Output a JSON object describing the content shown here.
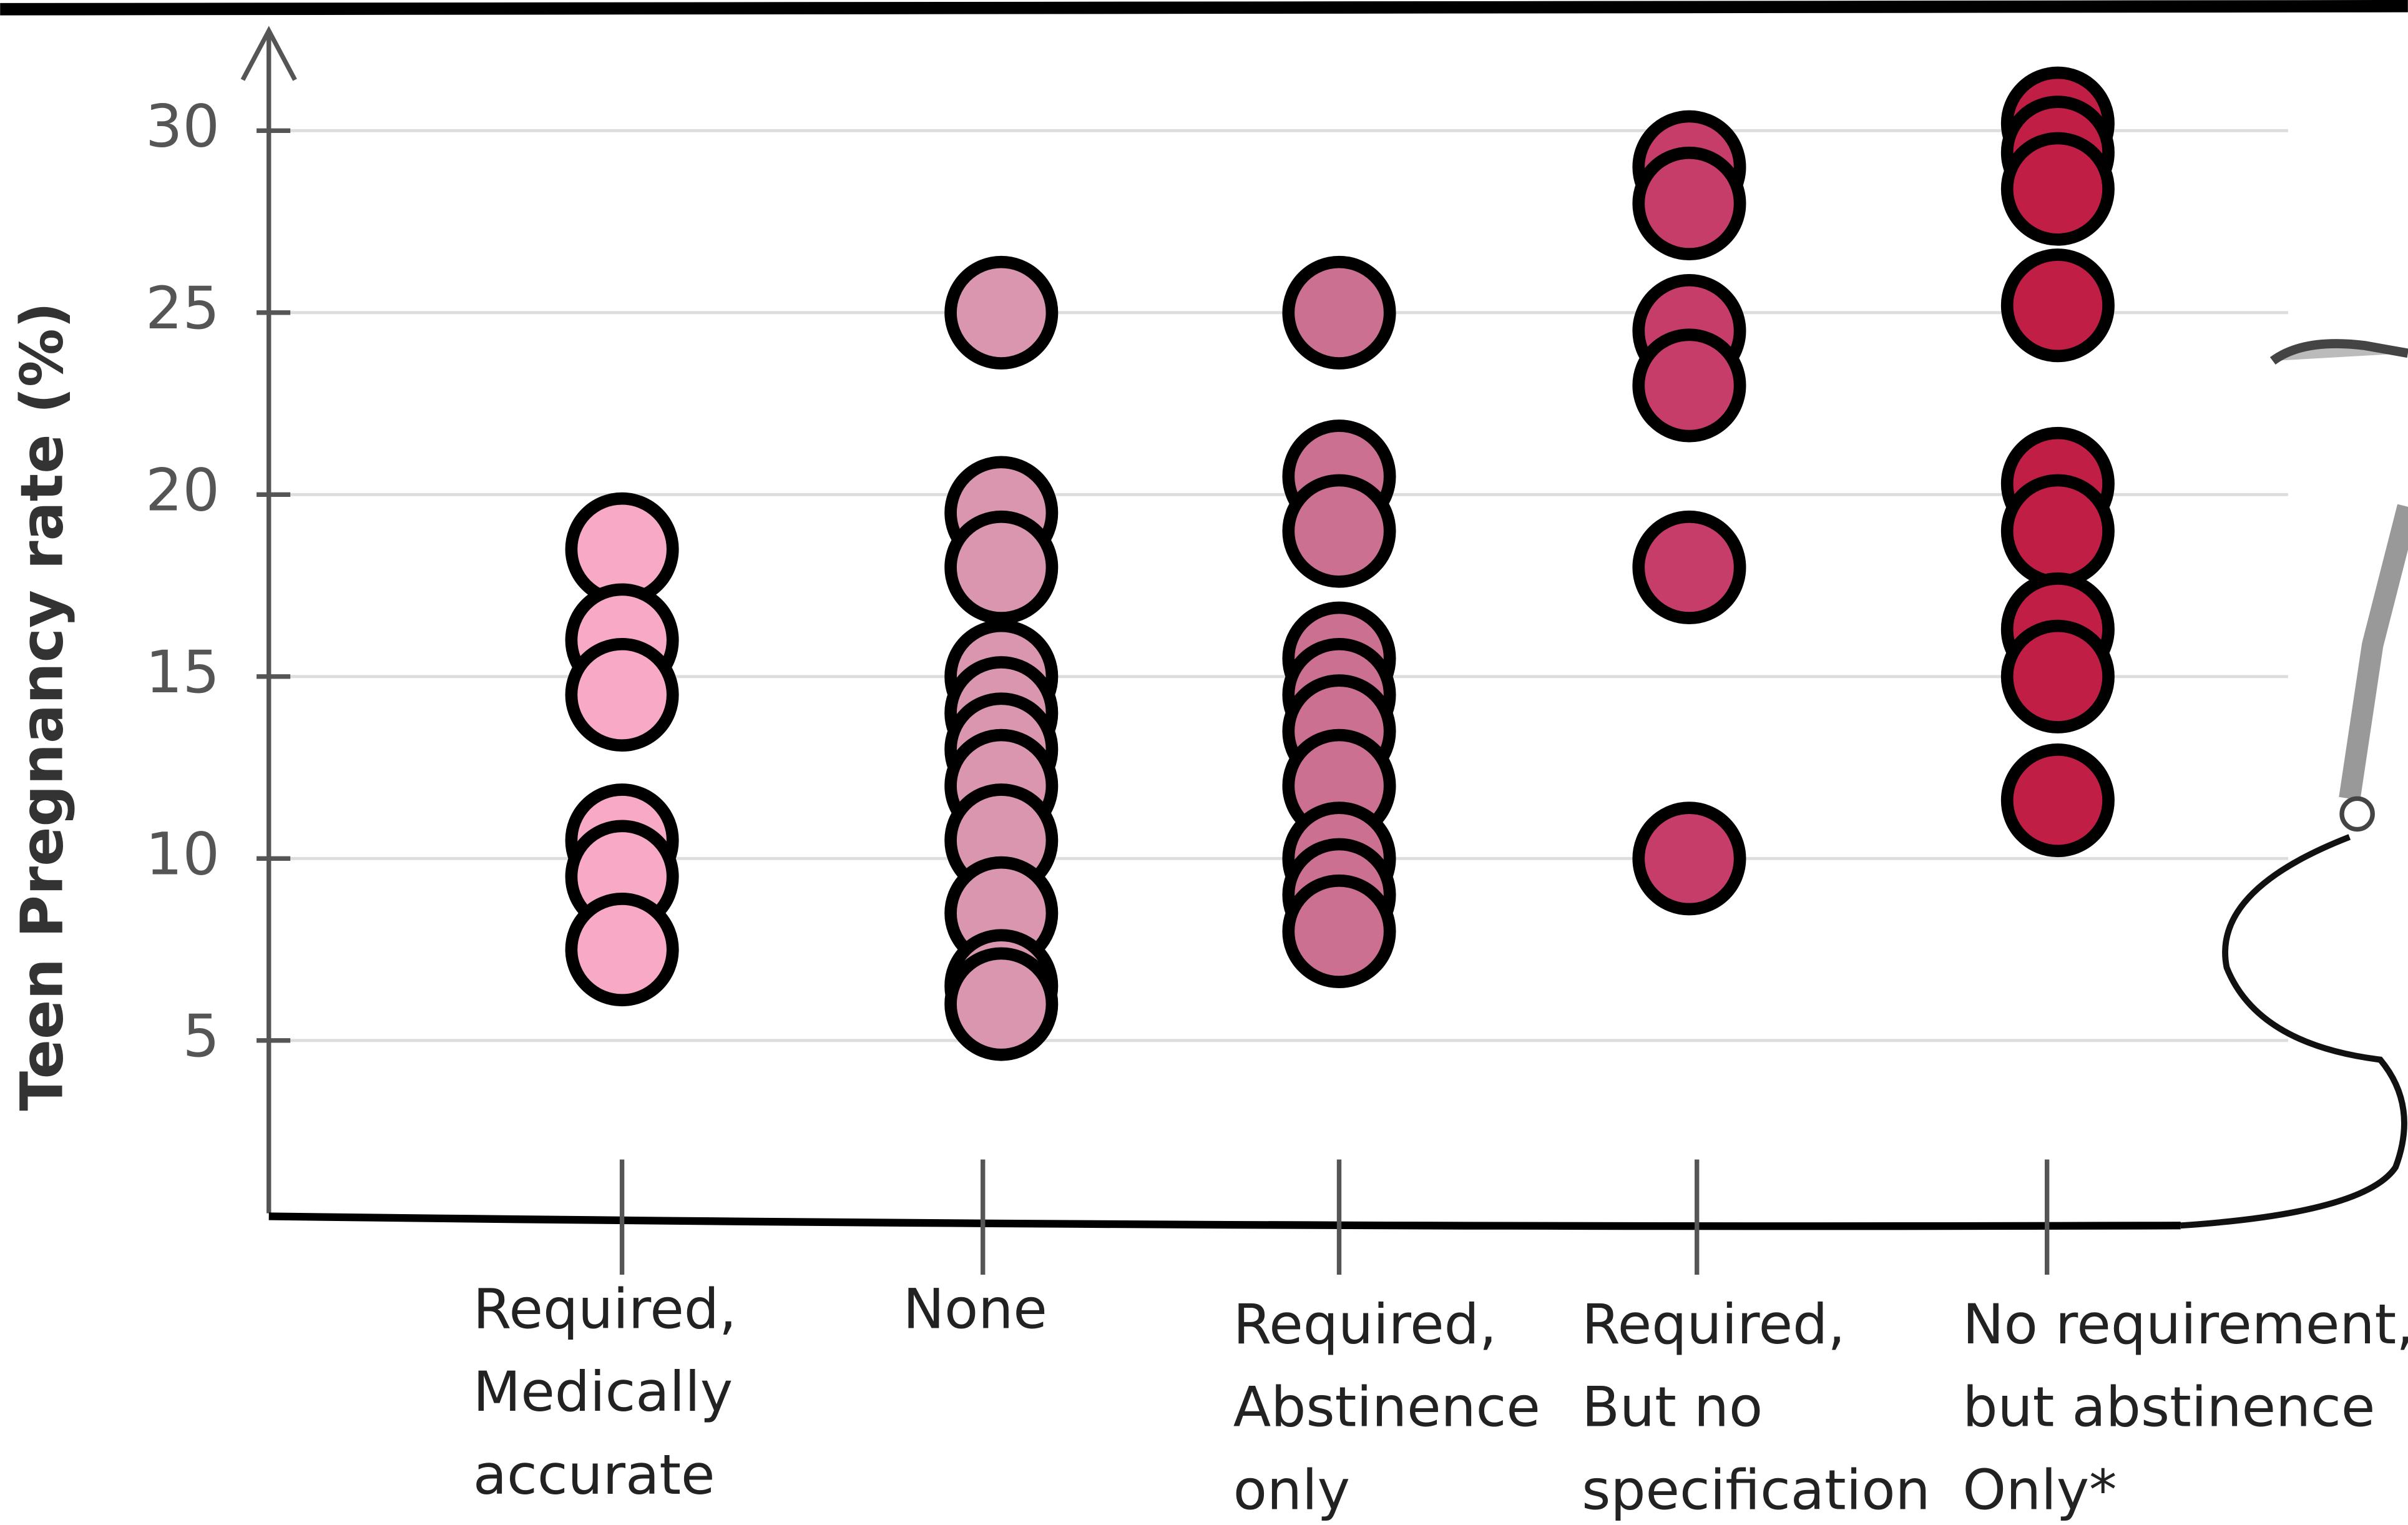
{
  "chart_data": {
    "type": "strip",
    "y_label": "Teen Pregnancy rate (%)",
    "categories": [
      [
        "Required,",
        "Medically",
        "accurate"
      ],
      [
        "None"
      ],
      [
        "Required,",
        "Abstinence",
        "only"
      ],
      [
        "Required,",
        "But no",
        "specification"
      ],
      [
        "No requirement,",
        "but abstinence",
        "Only*"
      ]
    ],
    "values": [
      [
        18.5,
        16,
        14.5,
        10.5,
        9.5,
        7.5
      ],
      [
        25,
        19.5,
        18,
        15,
        14,
        13,
        12,
        10.5,
        8.5,
        6.5,
        6
      ],
      [
        25,
        20.5,
        19,
        15.5,
        14.5,
        13.5,
        12,
        10,
        9,
        8
      ],
      [
        29,
        28,
        24.5,
        23,
        18,
        10
      ],
      [
        30.2,
        29.4,
        28.4,
        25.2,
        20.3,
        19,
        16.3,
        15,
        11.6
      ]
    ],
    "colors": [
      "#f7a9c5",
      "#d996ae",
      "#cb7090",
      "#c73d69",
      "#c01e45"
    ],
    "ylim": [
      0,
      33
    ],
    "yticks": [
      5,
      10,
      15,
      20,
      25,
      30
    ],
    "grid": true
  }
}
